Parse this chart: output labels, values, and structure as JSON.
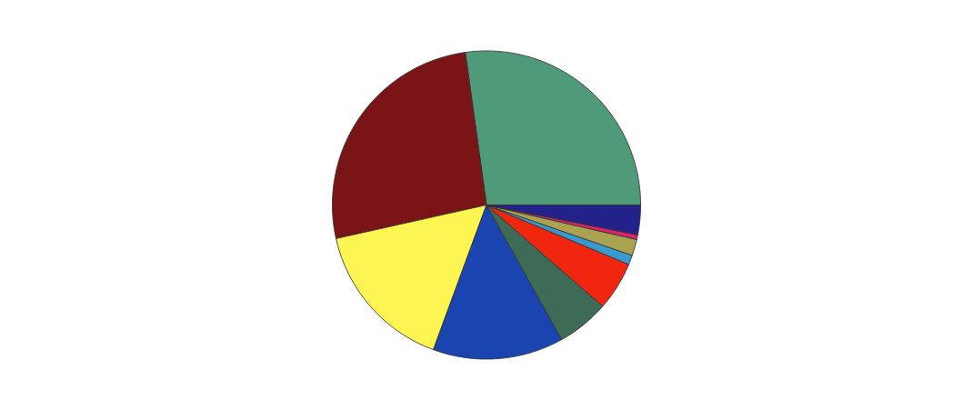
{
  "chart_data": {
    "type": "pie",
    "categories": [
      null,
      null,
      null,
      null,
      null,
      null,
      null,
      null,
      null,
      null
    ],
    "values": [
      27.2,
      26.3,
      15.9,
      13.7,
      5.5,
      5.1,
      1.0,
      1.7,
      0.5,
      3.1
    ],
    "colors": [
      "#4f9a78",
      "#7a1416",
      "#fdf552",
      "#1a44b0",
      "#3d6b55",
      "#f0260e",
      "#3a9ad0",
      "#a9a24f",
      "#e0206a",
      "#22228a"
    ]
  }
}
